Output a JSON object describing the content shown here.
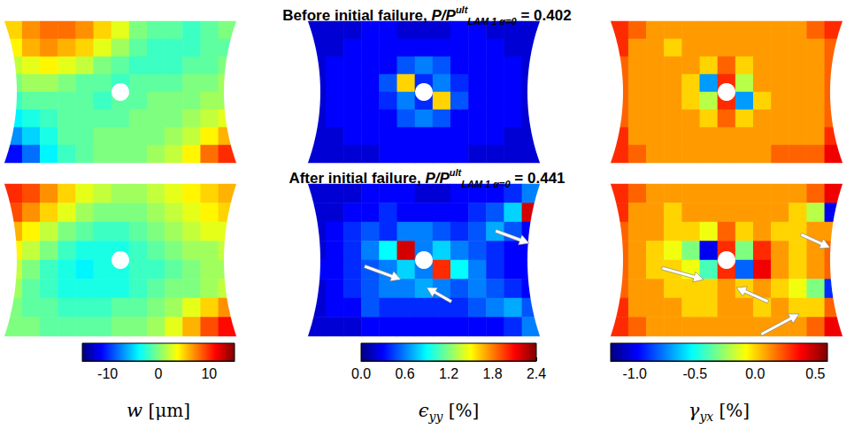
{
  "rows": [
    {
      "title": {
        "text": "Before initial failure,",
        "quantity": "P/P",
        "sup": "ult",
        "sub": "LAM 1 α=0",
        "equals": "=",
        "value": 0.402
      }
    },
    {
      "title": {
        "text": "After initial failure,",
        "quantity": "P/P",
        "sup": "ult",
        "sub": "LAM 1 α=0",
        "equals": "=",
        "value": 0.441
      }
    }
  ],
  "colorbars": [
    {
      "label": {
        "symbol": "w",
        "unit": "[μm]"
      },
      "range": [
        -15,
        15
      ],
      "ticks": [
        -10,
        0,
        10
      ]
    },
    {
      "label": {
        "symbol": "ϵ",
        "sub": "yy",
        "unit": "[%]"
      },
      "range": [
        0,
        2.4
      ],
      "ticks": [
        {
          "value": 0,
          "label": "0.0"
        },
        0.6,
        1.2,
        1.8,
        2.4
      ]
    },
    {
      "label": {
        "symbol": "γ",
        "sub": "yx",
        "unit": "[%]"
      },
      "range": [
        -1.2,
        0.6
      ],
      "ticks": [
        {
          "value": -1,
          "label": "-1.0"
        },
        -0.5,
        {
          "value": 0,
          "label": "0.0"
        },
        0.5
      ]
    }
  ],
  "chart_data": [
    {
      "type": "heatmap",
      "tick_labels": false,
      "cells": [
        [
          5,
          7,
          8,
          8,
          7,
          5,
          3,
          0,
          -1,
          -1,
          -2,
          -1,
          0
        ],
        [
          4,
          6,
          7,
          6,
          5,
          3,
          1,
          -1,
          -2,
          -2,
          -2,
          -1,
          -1
        ],
        [
          2,
          3,
          4,
          3,
          2,
          0,
          -1,
          -2,
          -2,
          -2,
          -1,
          -1,
          0
        ],
        [
          0,
          1,
          1,
          0,
          -1,
          -1,
          -2,
          -1,
          -1,
          -1,
          0,
          0,
          1
        ],
        [
          -2,
          -1,
          -1,
          -1,
          -1,
          -2,
          -1,
          -1,
          0,
          0,
          0,
          1,
          1
        ],
        [
          -4,
          -3,
          -2,
          -1,
          -1,
          -1,
          -1,
          0,
          0,
          0,
          1,
          2,
          3
        ],
        [
          -7,
          -5,
          -3,
          -1,
          -1,
          0,
          0,
          0,
          0,
          1,
          2,
          4,
          6
        ],
        [
          -11,
          -8,
          -4,
          -2,
          -1,
          0,
          0,
          0,
          1,
          2,
          4,
          8,
          10
        ]
      ]
    },
    {
      "type": "heatmap",
      "tick_labels": false,
      "cells": [
        [
          0.2,
          0.2,
          0.2,
          0.3,
          0.3,
          0.2,
          0.2,
          0.2,
          0.3,
          0.3,
          0.2,
          0.2,
          0.2
        ],
        [
          0.2,
          0.2,
          0.3,
          0.3,
          0.3,
          0.3,
          0.3,
          0.3,
          0.3,
          0.3,
          0.3,
          0.2,
          0.2
        ],
        [
          0.2,
          0.3,
          0.3,
          0.3,
          0.3,
          0.5,
          0.6,
          0.5,
          0.3,
          0.3,
          0.3,
          0.3,
          0.2
        ],
        [
          0.2,
          0.3,
          0.3,
          0.3,
          0.5,
          1.6,
          0.4,
          0.6,
          0.4,
          0.3,
          0.3,
          0.3,
          0.2
        ],
        [
          0.2,
          0.3,
          0.3,
          0.3,
          0.4,
          0.6,
          0.4,
          1.6,
          0.5,
          0.3,
          0.3,
          0.3,
          0.2
        ],
        [
          0.2,
          0.3,
          0.3,
          0.3,
          0.3,
          0.5,
          0.6,
          0.5,
          0.3,
          0.3,
          0.3,
          0.3,
          0.2
        ],
        [
          0.2,
          0.2,
          0.3,
          0.3,
          0.3,
          0.3,
          0.3,
          0.3,
          0.3,
          0.3,
          0.3,
          0.2,
          0.2
        ],
        [
          0.2,
          0.2,
          0.2,
          0.2,
          0.3,
          0.3,
          0.3,
          0.3,
          0.3,
          0.2,
          0.2,
          0.2,
          0.2
        ]
      ]
    },
    {
      "type": "heatmap",
      "tick_labels": false,
      "cells": [
        [
          0.3,
          0.2,
          0.1,
          0.1,
          0.1,
          0.1,
          0.1,
          0.1,
          0.1,
          0.1,
          0.1,
          0.2,
          0.3
        ],
        [
          0.3,
          0.1,
          0.1,
          0.0,
          0.1,
          0.1,
          0.1,
          0.1,
          0.1,
          0.1,
          0.1,
          0.1,
          0.2
        ],
        [
          0.2,
          0.1,
          0.1,
          0.1,
          0.1,
          0.0,
          0.2,
          0.0,
          0.1,
          0.1,
          0.1,
          0.1,
          0.2
        ],
        [
          0.2,
          0.1,
          0.1,
          0.1,
          0.0,
          -0.7,
          0.3,
          -0.2,
          0.1,
          0.1,
          0.1,
          0.1,
          0.2
        ],
        [
          0.2,
          0.1,
          0.1,
          0.1,
          0.0,
          -0.2,
          0.3,
          -0.7,
          0.0,
          0.1,
          0.1,
          0.1,
          0.2
        ],
        [
          0.2,
          0.1,
          0.1,
          0.1,
          0.1,
          0.0,
          0.2,
          0.0,
          0.1,
          0.1,
          0.1,
          0.1,
          0.2
        ],
        [
          0.3,
          0.1,
          0.1,
          0.1,
          0.1,
          0.1,
          0.1,
          0.1,
          0.1,
          0.1,
          0.1,
          0.1,
          0.3
        ],
        [
          0.3,
          0.2,
          0.1,
          0.1,
          0.1,
          0.1,
          0.1,
          0.1,
          0.1,
          0.2,
          0.2,
          0.2,
          0.4
        ]
      ]
    },
    {
      "type": "heatmap",
      "tick_labels": false,
      "cells": [
        [
          10,
          9,
          7,
          5,
          3,
          2,
          1,
          1,
          2,
          3,
          4,
          5,
          6
        ],
        [
          9,
          7,
          5,
          3,
          1,
          0,
          0,
          0,
          1,
          2,
          3,
          4,
          5
        ],
        [
          6,
          4,
          2,
          0,
          -1,
          -2,
          -2,
          -1,
          0,
          1,
          2,
          3,
          3
        ],
        [
          4,
          2,
          0,
          -2,
          -3,
          -3,
          -3,
          -2,
          -1,
          0,
          1,
          1,
          2
        ],
        [
          2,
          0,
          -2,
          -3,
          -4,
          -3,
          -3,
          -2,
          -2,
          -1,
          0,
          1,
          1
        ],
        [
          1,
          -1,
          -2,
          -3,
          -3,
          -3,
          -3,
          -2,
          -1,
          0,
          0,
          1,
          2
        ],
        [
          0,
          -1,
          -1,
          -2,
          -2,
          -2,
          -1,
          -1,
          0,
          1,
          3,
          5,
          7
        ],
        [
          0,
          0,
          -1,
          -1,
          -1,
          -1,
          0,
          0,
          1,
          3,
          6,
          9,
          11
        ]
      ]
    },
    {
      "type": "heatmap",
      "tick_labels": false,
      "cells": [
        [
          0.2,
          0.2,
          0.2,
          0.3,
          0.3,
          0.3,
          0.2,
          0.2,
          0.3,
          0.3,
          0.3,
          0.4,
          0.6
        ],
        [
          0.2,
          0.2,
          0.3,
          0.3,
          0.4,
          0.3,
          0.3,
          0.3,
          0.3,
          0.4,
          0.5,
          0.8,
          2.2
        ],
        [
          0.2,
          0.3,
          0.4,
          0.5,
          0.4,
          0.6,
          0.6,
          0.5,
          0.4,
          0.5,
          0.7,
          0.5,
          0.3
        ],
        [
          0.2,
          0.3,
          0.4,
          0.6,
          0.9,
          2.2,
          0.6,
          0.8,
          0.6,
          0.5,
          0.4,
          0.3,
          0.3
        ],
        [
          0.3,
          0.3,
          0.4,
          0.5,
          0.6,
          0.8,
          0.6,
          2.0,
          0.9,
          0.6,
          0.4,
          0.3,
          0.3
        ],
        [
          0.2,
          0.3,
          0.4,
          0.5,
          0.6,
          0.6,
          0.7,
          0.6,
          0.5,
          0.6,
          0.5,
          0.4,
          0.3
        ],
        [
          0.2,
          0.3,
          0.3,
          0.5,
          0.4,
          0.4,
          0.4,
          0.4,
          0.4,
          0.5,
          0.6,
          0.7,
          0.5
        ],
        [
          0.2,
          0.2,
          0.2,
          0.3,
          0.3,
          0.3,
          0.3,
          0.3,
          0.3,
          0.3,
          0.3,
          0.4,
          0.6
        ]
      ]
    },
    {
      "type": "heatmap",
      "tick_labels": false,
      "cells": [
        [
          0.3,
          0.2,
          0.1,
          0.1,
          0.1,
          0.1,
          0.1,
          0.1,
          0.1,
          0.1,
          0.1,
          0.2,
          0.4
        ],
        [
          0.3,
          0.1,
          0.1,
          0.0,
          0.1,
          0.1,
          0.1,
          0.1,
          0.1,
          0.1,
          0.0,
          -0.2,
          -1.0
        ],
        [
          0.2,
          0.1,
          0.1,
          0.0,
          0.0,
          -0.1,
          0.2,
          0.0,
          0.1,
          0.0,
          0.0,
          0.1,
          0.1
        ],
        [
          0.2,
          0.1,
          0.0,
          -0.1,
          -0.3,
          -1.0,
          0.3,
          -0.3,
          0.3,
          0.1,
          0.0,
          0.1,
          0.2
        ],
        [
          0.2,
          0.1,
          0.0,
          0.0,
          -0.1,
          -0.4,
          0.3,
          -0.8,
          0.4,
          0.1,
          0.0,
          0.1,
          0.2
        ],
        [
          0.2,
          0.1,
          0.1,
          0.0,
          0.0,
          0.0,
          0.1,
          0.0,
          0.1,
          0.0,
          -0.1,
          -0.3,
          -0.9
        ],
        [
          0.3,
          0.1,
          0.1,
          0.1,
          0.0,
          0.0,
          0.1,
          0.1,
          0.0,
          0.1,
          0.0,
          0.0,
          0.2
        ],
        [
          0.3,
          0.2,
          0.1,
          0.1,
          0.1,
          0.1,
          0.1,
          0.1,
          0.1,
          0.1,
          0.1,
          0.2,
          0.4
        ]
      ]
    }
  ]
}
